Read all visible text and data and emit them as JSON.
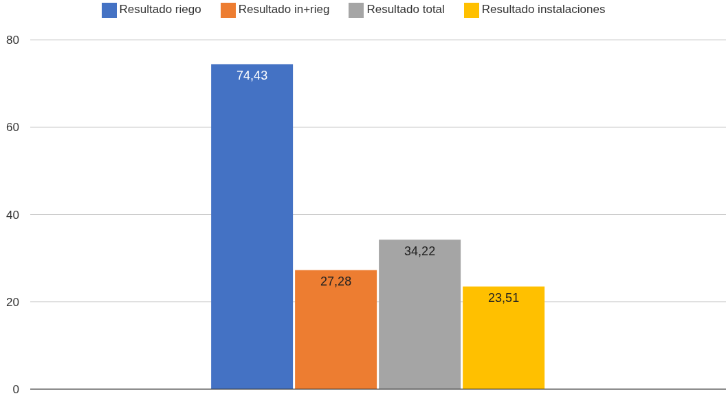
{
  "chart_data": {
    "type": "bar",
    "categories": [
      null
    ],
    "series": [
      {
        "name": "Resultado riego",
        "color": "#4472c4",
        "values": [
          74.43
        ],
        "value_labels": [
          "74,43"
        ]
      },
      {
        "name": "Resultado in+rieg",
        "color": "#ed7d31",
        "values": [
          27.28
        ],
        "value_labels": [
          "27,28"
        ]
      },
      {
        "name": "Resultado total",
        "color": "#a5a5a5",
        "values": [
          34.22
        ],
        "value_labels": [
          "34,22"
        ]
      },
      {
        "name": "Resultado instalaciones",
        "color": "#ffc000",
        "values": [
          23.51
        ],
        "value_labels": [
          "23,51"
        ]
      }
    ],
    "ylim": [
      0,
      80
    ],
    "yticks": [
      0,
      20,
      40,
      60,
      80
    ],
    "grid": "y",
    "legend": "top"
  }
}
